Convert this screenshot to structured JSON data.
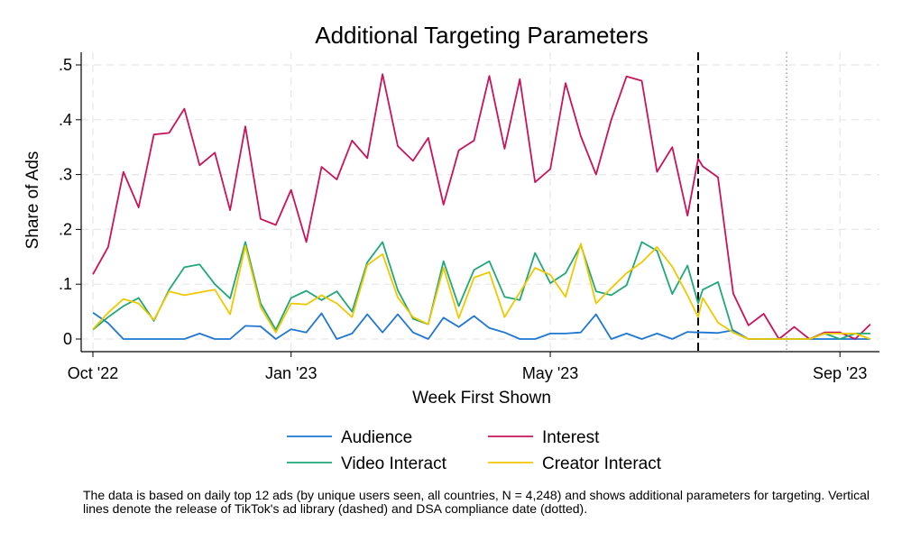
{
  "chart_data": {
    "type": "line",
    "title": "Additional Targeting Parameters",
    "xlabel": "Week First Shown",
    "ylabel": "Share of Ads",
    "ylim": [
      0,
      0.5
    ],
    "yticks": [
      {
        "value": 0,
        "label": "0"
      },
      {
        "value": 0.1,
        "label": ".1"
      },
      {
        "value": 0.2,
        "label": ".2"
      },
      {
        "value": 0.3,
        "label": ".3"
      },
      {
        "value": 0.4,
        "label": ".4"
      },
      {
        "value": 0.5,
        "label": ".5"
      }
    ],
    "xticks": [
      {
        "week": 0,
        "label": "Oct '22"
      },
      {
        "week": 13,
        "label": "Jan '23"
      },
      {
        "week": 30,
        "label": "May '23"
      },
      {
        "week": 49,
        "label": "Sep '23"
      }
    ],
    "xlim": [
      0,
      51
    ],
    "weeks": [
      0,
      1,
      2,
      3,
      4,
      5,
      6,
      7,
      8,
      9,
      10,
      11,
      12,
      13,
      14,
      15,
      16,
      17,
      18,
      19,
      20,
      21,
      22,
      23,
      24,
      25,
      26,
      27,
      28,
      29,
      30,
      31,
      32,
      33,
      34,
      35,
      36,
      37,
      38,
      39,
      39.7,
      40,
      41,
      42,
      43,
      44,
      45,
      46,
      47,
      48,
      49,
      50,
      51
    ],
    "series": [
      {
        "name": "Audience",
        "color": "#1f77d4",
        "values": [
          0.048,
          0.029,
          0,
          0,
          0,
          0,
          0,
          0.01,
          0,
          0,
          0.024,
          0.023,
          0,
          0.018,
          0.012,
          0.047,
          0,
          0.01,
          0.045,
          0.012,
          0.045,
          0.012,
          0,
          0.039,
          0.022,
          0.042,
          0.02,
          0.012,
          0,
          0,
          0.01,
          0.01,
          0.012,
          0.045,
          0,
          0.01,
          0,
          0.01,
          0,
          0.013,
          0.012,
          0.012,
          0.011,
          0.016,
          0,
          0,
          0,
          0,
          0,
          0,
          0,
          0,
          0
        ]
      },
      {
        "name": "Interest",
        "color": "#c8145a",
        "values": [
          0.118,
          0.168,
          0.305,
          0.24,
          0.373,
          0.376,
          0.42,
          0.317,
          0.34,
          0.235,
          0.388,
          0.219,
          0.208,
          0.272,
          0.177,
          0.314,
          0.291,
          0.362,
          0.33,
          0.483,
          0.352,
          0.325,
          0.367,
          0.245,
          0.344,
          0.362,
          0.48,
          0.347,
          0.474,
          0.286,
          0.31,
          0.467,
          0.37,
          0.3,
          0.4,
          0.479,
          0.471,
          0.305,
          0.35,
          0.225,
          0.329,
          0.315,
          0.295,
          0.083,
          0.025,
          0.046,
          0,
          0.022,
          0,
          0.012,
          0.012,
          0,
          0.027
        ]
      },
      {
        "name": "Video Interact",
        "color": "#1fa878",
        "values": [
          0.017,
          0.04,
          0.06,
          0.075,
          0.033,
          0.09,
          0.131,
          0.136,
          0.1,
          0.074,
          0.177,
          0.065,
          0.017,
          0.075,
          0.088,
          0.071,
          0.087,
          0.05,
          0.14,
          0.177,
          0.089,
          0.037,
          0.027,
          0.142,
          0.06,
          0.126,
          0.142,
          0.077,
          0.071,
          0.157,
          0.102,
          0.12,
          0.171,
          0.087,
          0.08,
          0.098,
          0.177,
          0.161,
          0.082,
          0.134,
          0.065,
          0.09,
          0.104,
          0.012,
          0,
          0,
          0,
          0,
          0,
          0.01,
          0,
          0.01,
          0.01
        ]
      },
      {
        "name": "Creator Interact",
        "color": "#f0c800",
        "values": [
          0.018,
          0.048,
          0.073,
          0.065,
          0.035,
          0.087,
          0.08,
          0.085,
          0.09,
          0.045,
          0.17,
          0.058,
          0.012,
          0.065,
          0.063,
          0.08,
          0.065,
          0.04,
          0.135,
          0.155,
          0.076,
          0.04,
          0.027,
          0.13,
          0.038,
          0.112,
          0.122,
          0.04,
          0.085,
          0.13,
          0.117,
          0.077,
          0.174,
          0.065,
          0.093,
          0.12,
          0.14,
          0.168,
          0.132,
          0.08,
          0.04,
          0.075,
          0.03,
          0.012,
          0,
          0,
          0,
          0,
          0,
          0.01,
          0.01,
          0.01,
          0
        ]
      }
    ],
    "reference_lines": [
      {
        "week": 39.7,
        "style": "dashed",
        "meaning": "release of TikTok's ad library"
      },
      {
        "week": 45.5,
        "style": "dotted",
        "meaning": "DSA compliance date"
      }
    ],
    "legend": {
      "position": "bottom",
      "columns": 2
    }
  },
  "note": "The data is based on daily top 12 ads (by unique users seen, all countries, N = 4,248) and shows additional parameters for targeting. Vertical lines denote the release of TikTok's ad library (dashed) and DSA compliance date (dotted)."
}
